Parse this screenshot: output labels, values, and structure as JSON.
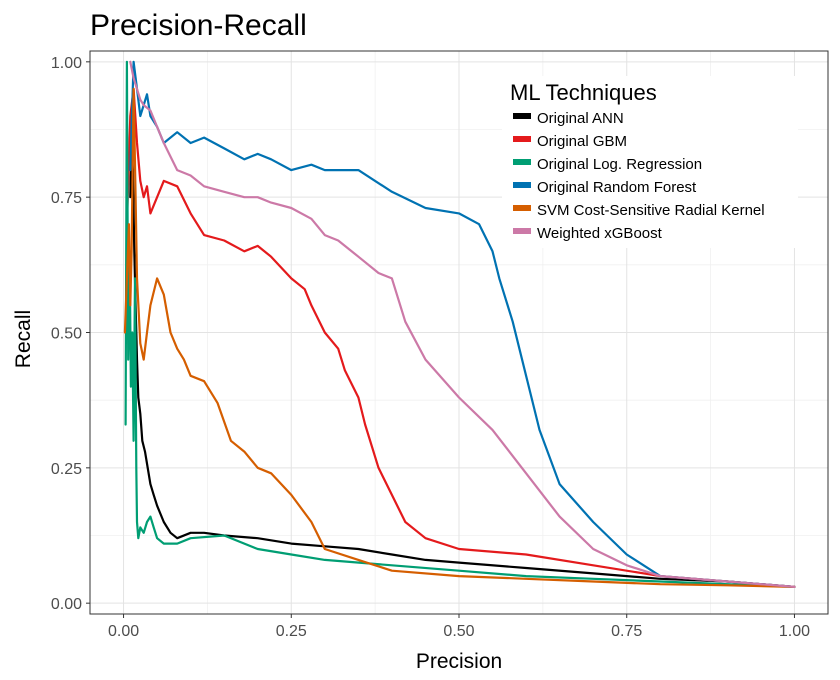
{
  "chart_data": {
    "type": "line",
    "title": "Precision-Recall",
    "xlabel": "Precision",
    "ylabel": "Recall",
    "xlim": [
      -0.05,
      1.05
    ],
    "ylim": [
      -0.02,
      1.02
    ],
    "xticks": [
      0.0,
      0.25,
      0.5,
      0.75,
      1.0
    ],
    "xtick_labels": [
      "0.00",
      "0.25",
      "0.50",
      "0.75",
      "1.00"
    ],
    "yticks": [
      0.0,
      0.25,
      0.5,
      0.75,
      1.0
    ],
    "ytick_labels": [
      "0.00",
      "0.25",
      "0.50",
      "0.75",
      "1.00"
    ],
    "grid": true,
    "legend": {
      "title": "ML Techniques",
      "placement": "top-right"
    },
    "series": [
      {
        "name": "Original ANN",
        "color": "#000000",
        "x": [
          0.01,
          0.012,
          0.014,
          0.016,
          0.018,
          0.02,
          0.022,
          0.025,
          0.028,
          0.032,
          0.036,
          0.04,
          0.045,
          0.05,
          0.06,
          0.07,
          0.08,
          0.1,
          0.12,
          0.15,
          0.2,
          0.25,
          0.3,
          0.35,
          0.4,
          0.45,
          0.5,
          0.6,
          0.7,
          0.8,
          0.9,
          1.0
        ],
        "y": [
          0.75,
          0.85,
          0.8,
          0.65,
          0.55,
          0.45,
          0.38,
          0.35,
          0.3,
          0.28,
          0.25,
          0.22,
          0.2,
          0.18,
          0.15,
          0.13,
          0.12,
          0.13,
          0.13,
          0.125,
          0.12,
          0.11,
          0.105,
          0.1,
          0.09,
          0.08,
          0.075,
          0.065,
          0.055,
          0.045,
          0.04,
          0.03
        ]
      },
      {
        "name": "Original GBM",
        "color": "#e41a1c",
        "x": [
          0.005,
          0.01,
          0.015,
          0.02,
          0.025,
          0.03,
          0.035,
          0.04,
          0.06,
          0.08,
          0.1,
          0.12,
          0.15,
          0.18,
          0.2,
          0.22,
          0.25,
          0.27,
          0.28,
          0.3,
          0.32,
          0.33,
          0.35,
          0.36,
          0.38,
          0.4,
          0.42,
          0.45,
          0.5,
          0.6,
          0.7,
          0.8,
          0.9,
          1.0
        ],
        "y": [
          0.7,
          0.9,
          0.95,
          0.85,
          0.78,
          0.75,
          0.77,
          0.72,
          0.78,
          0.77,
          0.72,
          0.68,
          0.67,
          0.65,
          0.66,
          0.64,
          0.6,
          0.58,
          0.55,
          0.5,
          0.47,
          0.43,
          0.38,
          0.33,
          0.25,
          0.2,
          0.15,
          0.12,
          0.1,
          0.09,
          0.07,
          0.05,
          0.04,
          0.03
        ]
      },
      {
        "name": "Original Log. Regression",
        "color": "#009e73",
        "x": [
          0.003,
          0.005,
          0.007,
          0.009,
          0.011,
          0.013,
          0.015,
          0.017,
          0.019,
          0.02,
          0.022,
          0.025,
          0.03,
          0.035,
          0.04,
          0.045,
          0.05,
          0.06,
          0.08,
          0.1,
          0.15,
          0.2,
          0.25,
          0.3,
          0.4,
          0.5,
          0.6,
          0.7,
          0.8,
          0.9,
          1.0
        ],
        "y": [
          0.33,
          1.0,
          0.45,
          0.65,
          0.4,
          0.5,
          0.3,
          0.6,
          0.25,
          0.15,
          0.12,
          0.14,
          0.13,
          0.15,
          0.16,
          0.14,
          0.12,
          0.11,
          0.11,
          0.12,
          0.125,
          0.1,
          0.09,
          0.08,
          0.07,
          0.06,
          0.05,
          0.045,
          0.04,
          0.035,
          0.03
        ]
      },
      {
        "name": "Original Random Forest",
        "color": "#0072b2",
        "x": [
          0.01,
          0.015,
          0.02,
          0.025,
          0.03,
          0.035,
          0.04,
          0.05,
          0.06,
          0.08,
          0.1,
          0.12,
          0.15,
          0.18,
          0.2,
          0.22,
          0.25,
          0.28,
          0.3,
          0.35,
          0.4,
          0.45,
          0.5,
          0.53,
          0.55,
          0.56,
          0.58,
          0.6,
          0.62,
          0.65,
          0.7,
          0.75,
          0.8,
          0.9,
          1.0
        ],
        "y": [
          0.8,
          1.0,
          0.95,
          0.9,
          0.92,
          0.94,
          0.9,
          0.88,
          0.85,
          0.87,
          0.85,
          0.86,
          0.84,
          0.82,
          0.83,
          0.82,
          0.8,
          0.81,
          0.8,
          0.8,
          0.76,
          0.73,
          0.72,
          0.7,
          0.65,
          0.6,
          0.52,
          0.42,
          0.32,
          0.22,
          0.15,
          0.09,
          0.05,
          0.04,
          0.03
        ]
      },
      {
        "name": "SVM Cost-Sensitive Radial Kernel",
        "color": "#d55e00",
        "x": [
          0.002,
          0.005,
          0.008,
          0.01,
          0.012,
          0.015,
          0.018,
          0.02,
          0.025,
          0.03,
          0.035,
          0.04,
          0.05,
          0.06,
          0.07,
          0.08,
          0.09,
          0.1,
          0.12,
          0.14,
          0.16,
          0.18,
          0.2,
          0.22,
          0.25,
          0.28,
          0.3,
          0.35,
          0.4,
          0.5,
          0.6,
          0.7,
          0.8,
          0.9,
          1.0
        ],
        "y": [
          0.5,
          0.6,
          0.7,
          0.55,
          0.65,
          0.95,
          0.75,
          0.6,
          0.48,
          0.45,
          0.5,
          0.55,
          0.6,
          0.57,
          0.5,
          0.47,
          0.45,
          0.42,
          0.41,
          0.37,
          0.3,
          0.28,
          0.25,
          0.24,
          0.2,
          0.15,
          0.1,
          0.08,
          0.06,
          0.05,
          0.045,
          0.04,
          0.035,
          0.033,
          0.03
        ]
      },
      {
        "name": "Weighted xGBoost",
        "color": "#cc79a7",
        "x": [
          0.01,
          0.015,
          0.02,
          0.025,
          0.03,
          0.04,
          0.05,
          0.06,
          0.08,
          0.1,
          0.12,
          0.15,
          0.18,
          0.2,
          0.22,
          0.25,
          0.28,
          0.3,
          0.32,
          0.35,
          0.38,
          0.4,
          0.42,
          0.45,
          0.5,
          0.55,
          0.6,
          0.65,
          0.7,
          0.75,
          0.8,
          0.9,
          1.0
        ],
        "y": [
          1.0,
          0.97,
          0.95,
          0.93,
          0.92,
          0.91,
          0.88,
          0.85,
          0.8,
          0.79,
          0.77,
          0.76,
          0.75,
          0.75,
          0.74,
          0.73,
          0.71,
          0.68,
          0.67,
          0.64,
          0.61,
          0.6,
          0.52,
          0.45,
          0.38,
          0.32,
          0.24,
          0.16,
          0.1,
          0.07,
          0.05,
          0.04,
          0.03
        ]
      }
    ]
  }
}
